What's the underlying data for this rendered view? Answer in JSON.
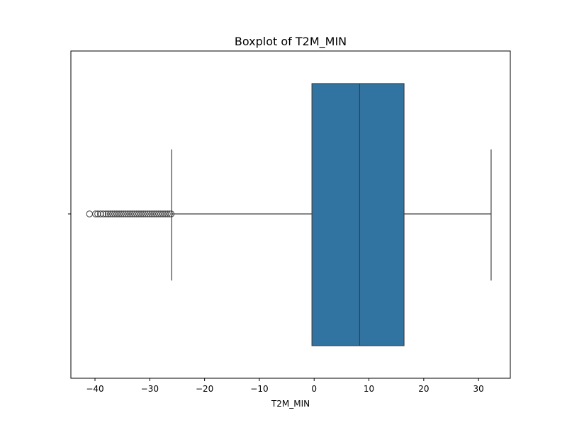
{
  "chart_data": {
    "type": "boxplot",
    "orientation": "horizontal",
    "title": "Boxplot of T2M_MIN",
    "xlabel": "T2M_MIN",
    "ylabel": "",
    "xlim": [
      -44.4,
      35.8
    ],
    "xticks": [
      -40,
      -30,
      -20,
      -10,
      0,
      10,
      20,
      30
    ],
    "xtick_labels": [
      "−40",
      "−30",
      "−20",
      "−10",
      "0",
      "10",
      "20",
      "30"
    ],
    "box_color": "#3274a1",
    "line_color": "#3f3f3f",
    "stats": {
      "whisker_low": -26.0,
      "q1": -0.4,
      "median": 8.3,
      "q3": 16.4,
      "whisker_high": 32.3
    },
    "outliers": [
      -41.0,
      -39.9,
      -39.5,
      -39.0,
      -38.5,
      -38.0,
      -37.6,
      -37.2,
      -36.8,
      -36.4,
      -36.0,
      -35.6,
      -35.2,
      -34.8,
      -34.4,
      -34.0,
      -33.6,
      -33.2,
      -32.8,
      -32.4,
      -32.0,
      -31.6,
      -31.2,
      -30.8,
      -30.4,
      -30.0,
      -29.6,
      -29.2,
      -28.8,
      -28.4,
      -28.0,
      -27.6,
      -27.2,
      -26.8,
      -26.4,
      -26.1
    ]
  }
}
